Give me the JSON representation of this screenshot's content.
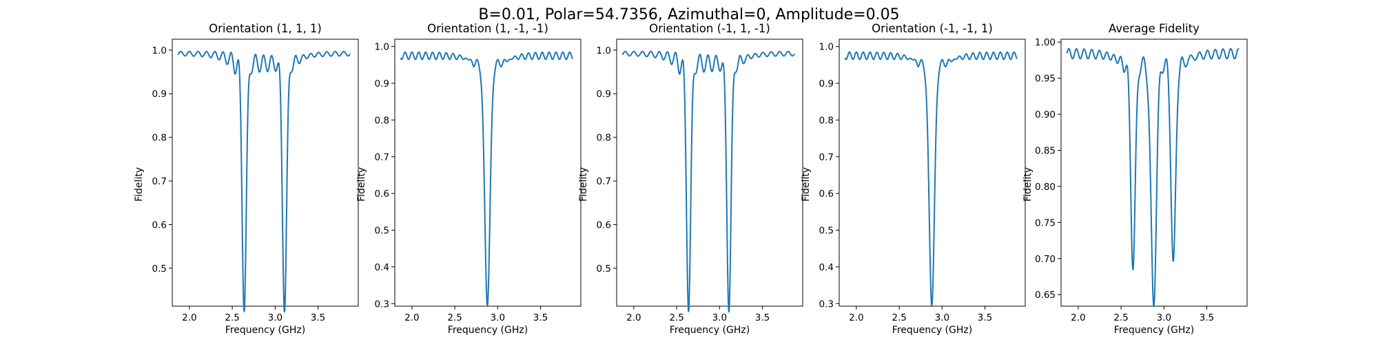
{
  "figure_title": "B=0.01, Polar=54.7356, Azimuthal=0, Amplitude=0.05",
  "colors": {
    "line": "#1f77b4",
    "axes": "#000000",
    "background": "#ffffff"
  },
  "chart_data": [
    {
      "type": "line",
      "title": "Orientation (1, 1, 1)",
      "xlabel": "Frequency (GHz)",
      "ylabel": "Fidelity",
      "xlim": [
        1.8,
        3.97
      ],
      "ylim": [
        0.413,
        1.025
      ],
      "xticks": [
        2.0,
        2.5,
        3.0,
        3.5
      ],
      "xtick_labels": [
        "2.0",
        "2.5",
        "3.0",
        "3.5"
      ],
      "yticks": [
        0.5,
        0.6,
        0.7,
        0.8,
        0.9,
        1.0
      ],
      "ytick_labels": [
        "0.5",
        "0.6",
        "0.7",
        "0.8",
        "0.9",
        "1.0"
      ],
      "grid": false,
      "model": {
        "range": [
          1.87,
          3.87
        ],
        "baseline": 0.992,
        "ripple": {
          "amp": 0.005,
          "period": 0.1
        },
        "dips": [
          {
            "center": 2.64,
            "depth": 0.552,
            "width": 0.035
          },
          {
            "center": 3.11,
            "depth": 0.556,
            "width": 0.035
          }
        ],
        "ring": {
          "edges": [
            2.53,
            3.22
          ],
          "freq": 0.095,
          "amp": 0.045,
          "decay": 0.12
        }
      }
    },
    {
      "type": "line",
      "title": "Orientation (1, -1, -1)",
      "xlabel": "Frequency (GHz)",
      "ylabel": "Fidelity",
      "xlim": [
        1.8,
        3.97
      ],
      "ylim": [
        0.293,
        1.02
      ],
      "xticks": [
        2.0,
        2.5,
        3.0,
        3.5
      ],
      "xtick_labels": [
        "2.0",
        "2.5",
        "3.0",
        "3.5"
      ],
      "yticks": [
        0.3,
        0.4,
        0.5,
        0.6,
        0.7,
        0.8,
        0.9,
        1.0
      ],
      "ytick_labels": [
        "0.3",
        "0.4",
        "0.5",
        "0.6",
        "0.7",
        "0.8",
        "0.9",
        "1.0"
      ],
      "grid": false,
      "model": {
        "range": [
          1.87,
          3.87
        ],
        "baseline": 0.975,
        "ripple": {
          "amp": 0.01,
          "period": 0.08
        },
        "dips": [
          {
            "center": 2.88,
            "depth": 0.65,
            "width": 0.045
          }
        ],
        "ring": {
          "edges": [
            2.72,
            3.07
          ],
          "freq": 0.08,
          "amp": 0.04,
          "decay": 0.1
        }
      }
    },
    {
      "type": "line",
      "title": "Orientation (-1, 1, -1)",
      "xlabel": "Frequency (GHz)",
      "ylabel": "Fidelity",
      "xlim": [
        1.8,
        3.97
      ],
      "ylim": [
        0.413,
        1.025
      ],
      "xticks": [
        2.0,
        2.5,
        3.0,
        3.5
      ],
      "xtick_labels": [
        "2.0",
        "2.5",
        "3.0",
        "3.5"
      ],
      "yticks": [
        0.5,
        0.6,
        0.7,
        0.8,
        0.9,
        1.0
      ],
      "ytick_labels": [
        "0.5",
        "0.6",
        "0.7",
        "0.8",
        "0.9",
        "1.0"
      ],
      "grid": false,
      "model": {
        "range": [
          1.87,
          3.87
        ],
        "baseline": 0.992,
        "ripple": {
          "amp": 0.005,
          "period": 0.1
        },
        "dips": [
          {
            "center": 2.64,
            "depth": 0.552,
            "width": 0.035
          },
          {
            "center": 3.11,
            "depth": 0.556,
            "width": 0.035
          }
        ],
        "ring": {
          "edges": [
            2.53,
            3.22
          ],
          "freq": 0.095,
          "amp": 0.045,
          "decay": 0.12
        }
      }
    },
    {
      "type": "line",
      "title": "Orientation (-1, -1, 1)",
      "xlabel": "Frequency (GHz)",
      "ylabel": "Fidelity",
      "xlim": [
        1.8,
        3.97
      ],
      "ylim": [
        0.293,
        1.02
      ],
      "xticks": [
        2.0,
        2.5,
        3.0,
        3.5
      ],
      "xtick_labels": [
        "2.0",
        "2.5",
        "3.0",
        "3.5"
      ],
      "yticks": [
        0.3,
        0.4,
        0.5,
        0.6,
        0.7,
        0.8,
        0.9,
        1.0
      ],
      "ytick_labels": [
        "0.3",
        "0.4",
        "0.5",
        "0.6",
        "0.7",
        "0.8",
        "0.9",
        "1.0"
      ],
      "grid": false,
      "model": {
        "range": [
          1.87,
          3.87
        ],
        "baseline": 0.975,
        "ripple": {
          "amp": 0.01,
          "period": 0.08
        },
        "dips": [
          {
            "center": 2.88,
            "depth": 0.65,
            "width": 0.045
          }
        ],
        "ring": {
          "edges": [
            2.72,
            3.07
          ],
          "freq": 0.08,
          "amp": 0.04,
          "decay": 0.1
        }
      }
    },
    {
      "type": "line",
      "title": "Average Fidelity",
      "xlabel": "Frequency (GHz)",
      "ylabel": "Fidelity",
      "xlim": [
        1.8,
        3.97
      ],
      "ylim": [
        0.634,
        1.004
      ],
      "xticks": [
        2.0,
        2.5,
        3.0,
        3.5
      ],
      "xtick_labels": [
        "2.0",
        "2.5",
        "3.0",
        "3.5"
      ],
      "yticks": [
        0.65,
        0.7,
        0.75,
        0.8,
        0.85,
        0.9,
        0.95,
        1.0
      ],
      "ytick_labels": [
        "0.65",
        "0.70",
        "0.75",
        "0.80",
        "0.85",
        "0.90",
        "0.95",
        "1.00"
      ],
      "grid": false,
      "model": {
        "range": [
          1.87,
          3.87
        ],
        "baseline": 0.984,
        "ripple": {
          "amp": 0.007,
          "period": 0.09
        },
        "dips": [
          {
            "center": 2.64,
            "depth": 0.278,
            "width": 0.038
          },
          {
            "center": 2.88,
            "depth": 0.33,
            "width": 0.045
          },
          {
            "center": 3.11,
            "depth": 0.28,
            "width": 0.038
          }
        ],
        "ring": {
          "edges": [
            2.53,
            3.22
          ],
          "freq": 0.09,
          "amp": 0.03,
          "decay": 0.12
        }
      }
    }
  ]
}
